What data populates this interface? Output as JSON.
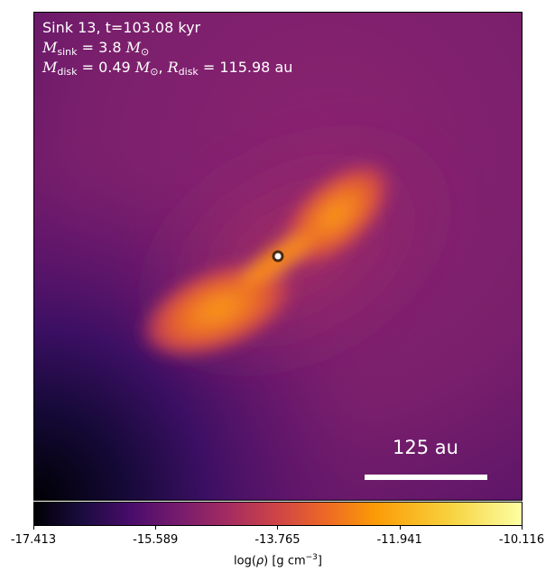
{
  "chart_data": {
    "type": "heatmap",
    "title_lines": {
      "line1": "Sink 13, t=103.08 kyr",
      "line2_symbol": "M",
      "line2_sub": "sink",
      "line2_value": " = 3.8 ",
      "line2_unit": "M",
      "line2_unit_sub": "⊙",
      "line3_symbol": "M",
      "line3_sub": "disk",
      "line3_value": " = 0.49 ",
      "line3_unit": "M",
      "line3_unit_sub": "⊙",
      "line3_sep": ", ",
      "line3_symbol2": "R",
      "line3_sub2": "disk",
      "line3_value2": " = 115.98 au"
    },
    "scale_bar_label": "125 au",
    "colorbar": {
      "colormap": "inferno",
      "vmin": -17.413,
      "vmax": -10.116,
      "tick_labels": [
        "-17.413",
        "-15.589",
        "-13.765",
        "-11.941",
        "-10.116"
      ],
      "tick_values": [
        -17.413,
        -15.589,
        -13.765,
        -11.941,
        -10.116
      ],
      "label_prefix": "log(",
      "label_rho": "ρ",
      "label_mid": ") [g cm",
      "label_exp": "−3",
      "label_suffix": "]"
    },
    "sink_marker": {
      "fill": "#ffffff",
      "stroke": "#4a2a12"
    },
    "colors": {
      "background": "#7a1f6c",
      "dark_corner": "#000004",
      "disk_core": "#f7931a",
      "disk_mid": "#e8622a",
      "disk_outer": "#b8365c"
    }
  }
}
